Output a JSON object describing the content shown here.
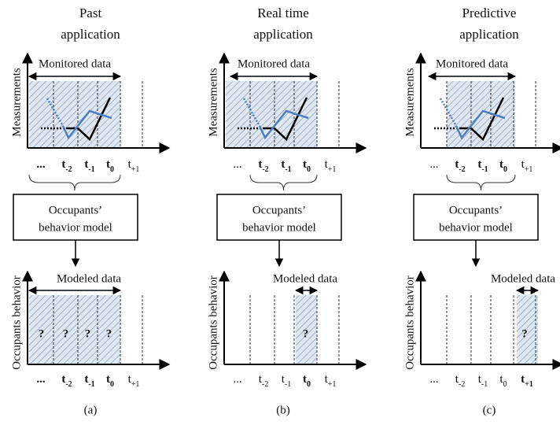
{
  "panels": [
    {
      "title": [
        "Past",
        "application"
      ],
      "top": {
        "y_label": "Measurements",
        "span_label": "Monitored data",
        "ticks": [
          {
            "base": "...",
            "bold": true
          },
          {
            "base": "t",
            "sub": "-2",
            "bold": true
          },
          {
            "base": "t",
            "sub": "-1",
            "bold": true
          },
          {
            "base": "t",
            "sub": "0",
            "bold": true
          },
          {
            "base": "t",
            "sub": "+1",
            "bold": false
          }
        ]
      },
      "model": [
        "Occupants’",
        "behavior model"
      ],
      "bottom": {
        "y_label": "Occupants behavior",
        "span_label": "Modeled data",
        "marks": [
          "?",
          "?",
          "?",
          "?"
        ],
        "ticks": [
          {
            "base": "...",
            "bold": true
          },
          {
            "base": "t",
            "sub": "-2",
            "bold": true
          },
          {
            "base": "t",
            "sub": "-1",
            "bold": true
          },
          {
            "base": "t",
            "sub": "0",
            "bold": true
          },
          {
            "base": "t",
            "sub": "+1",
            "bold": false
          }
        ]
      },
      "caption": "(a)"
    },
    {
      "title": [
        "Real time",
        "application"
      ],
      "top": {
        "y_label": "Measurements",
        "span_label": "Monitored data",
        "ticks": [
          {
            "base": "...",
            "bold": false
          },
          {
            "base": "t",
            "sub": "-2",
            "bold": true
          },
          {
            "base": "t",
            "sub": "-1",
            "bold": true
          },
          {
            "base": "t",
            "sub": "0",
            "bold": true
          },
          {
            "base": "t",
            "sub": "+1",
            "bold": false
          }
        ]
      },
      "model": [
        "Occupants’",
        "behavior model"
      ],
      "bottom": {
        "y_label": "Occupants behavior",
        "span_label": "Modeled data",
        "marks": [
          "?"
        ],
        "ticks": [
          {
            "base": "...",
            "bold": false
          },
          {
            "base": "t",
            "sub": "-2",
            "bold": false
          },
          {
            "base": "t",
            "sub": "-1",
            "bold": false
          },
          {
            "base": "t",
            "sub": "0",
            "bold": true
          },
          {
            "base": "t",
            "sub": "+1",
            "bold": false
          }
        ]
      },
      "caption": "(b)"
    },
    {
      "title": [
        "Predictive",
        "application"
      ],
      "top": {
        "y_label": "Measurements",
        "span_label": "Monitored data",
        "ticks": [
          {
            "base": "...",
            "bold": false
          },
          {
            "base": "t",
            "sub": "-2",
            "bold": true
          },
          {
            "base": "t",
            "sub": "-1",
            "bold": true
          },
          {
            "base": "t",
            "sub": "0",
            "bold": true
          },
          {
            "base": "t",
            "sub": "+1",
            "bold": false
          }
        ]
      },
      "model": [
        "Occupants’",
        "behavior model"
      ],
      "bottom": {
        "y_label": "Occupants behavior",
        "span_label": "Modeled data",
        "marks": [
          "?"
        ],
        "ticks": [
          {
            "base": "...",
            "bold": false
          },
          {
            "base": "t",
            "sub": "-2",
            "bold": false
          },
          {
            "base": "t",
            "sub": "-1",
            "bold": false
          },
          {
            "base": "t",
            "sub": "0",
            "bold": false
          },
          {
            "base": "t",
            "sub": "+1",
            "bold": true
          }
        ]
      },
      "caption": "(c)"
    }
  ]
}
